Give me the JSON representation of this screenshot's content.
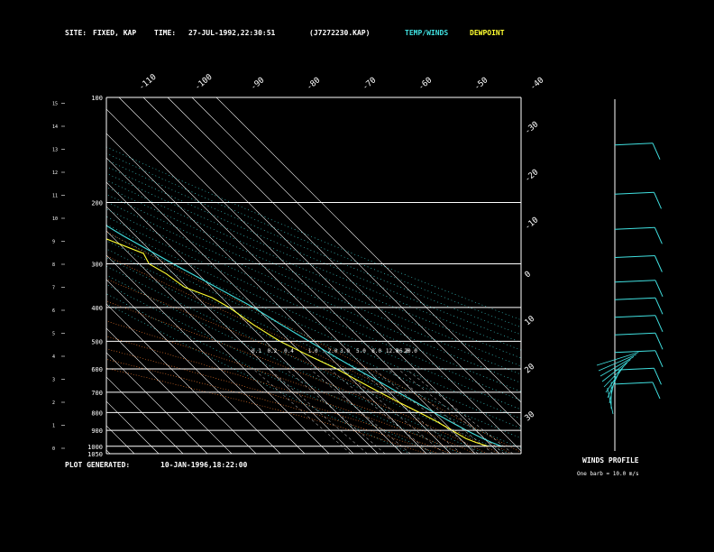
{
  "header": {
    "site_label": "SITE:",
    "site_value": "FIXED, KAP",
    "time_label": "TIME:",
    "time_value": "27-JUL-1992,22:30:51",
    "file_value": "(J7272230.KAP)",
    "legend_temp": "TEMP/WINDS",
    "legend_dew": "DEWPOINT"
  },
  "footer": {
    "generated_label": "PLOT GENERATED:",
    "generated_value": "10-JAN-1996,18:22:00",
    "winds_title": "WINDS PROFILE",
    "winds_note": "One barb = 10.0 m/s"
  },
  "colors": {
    "background": "#000000",
    "grid": "#ffffff",
    "temperature": "#40e0e0",
    "dewpoint": "#ffff30",
    "mixing_ratio": "#ff8030",
    "text": "#ffffff"
  },
  "chart_data": {
    "type": "line",
    "subtype": "skew-t log-p sounding",
    "title": "",
    "pressure_levels": [
      100,
      200,
      300,
      400,
      500,
      600,
      700,
      800,
      900,
      1000
    ],
    "pressure_extra_labels": [
      "1050"
    ],
    "pressure_range": [
      100,
      1050
    ],
    "height_ticks_km": [
      0,
      1,
      2,
      3,
      4,
      5,
      6,
      7,
      8,
      9,
      10,
      11,
      12,
      13,
      14,
      15
    ],
    "isotherm_labels_top": [
      "-110",
      "-100",
      "-90",
      "-80",
      "-70",
      "-60",
      "-50",
      "-40"
    ],
    "isotherm_labels_right": [
      "-30",
      "-20",
      "-10",
      "0",
      "10",
      "20",
      "30"
    ],
    "mixing_ratio_labels": [
      "0.1",
      "0.2",
      "0.4",
      "1.0",
      "2.0",
      "3.0",
      "5.0",
      "8.0",
      "12.0",
      "16.0",
      "20.0"
    ],
    "temperature": [
      {
        "p": 1000,
        "t": 24.0
      },
      {
        "p": 975,
        "t": 21.5
      },
      {
        "p": 950,
        "t": 19.5
      },
      {
        "p": 900,
        "t": 16.0
      },
      {
        "p": 850,
        "t": 13.0
      },
      {
        "p": 800,
        "t": 10.0
      },
      {
        "p": 750,
        "t": 7.0
      },
      {
        "p": 700,
        "t": 3.5
      },
      {
        "p": 650,
        "t": 0.0
      },
      {
        "p": 600,
        "t": -4.0
      },
      {
        "p": 550,
        "t": -8.0
      },
      {
        "p": 500,
        "t": -12.0
      },
      {
        "p": 450,
        "t": -16.5
      },
      {
        "p": 400,
        "t": -21.0
      },
      {
        "p": 350,
        "t": -28.0
      },
      {
        "p": 300,
        "t": -36.0
      },
      {
        "p": 250,
        "t": -45.0
      },
      {
        "p": 200,
        "t": -54.0
      },
      {
        "p": 175,
        "t": -58.0
      },
      {
        "p": 150,
        "t": -60.0
      },
      {
        "p": 125,
        "t": -62.0
      },
      {
        "p": 110,
        "t": -61.0
      },
      {
        "p": 100,
        "t": -62.0
      }
    ],
    "dewpoint": [
      {
        "p": 1000,
        "t": 18.5
      },
      {
        "p": 975,
        "t": 15.0
      },
      {
        "p": 950,
        "t": 12.5
      },
      {
        "p": 900,
        "t": 10.0
      },
      {
        "p": 850,
        "t": 7.5
      },
      {
        "p": 800,
        "t": 4.0
      },
      {
        "p": 750,
        "t": 0.0
      },
      {
        "p": 700,
        "t": -4.0
      },
      {
        "p": 650,
        "t": -8.0
      },
      {
        "p": 600,
        "t": -12.0
      },
      {
        "p": 550,
        "t": -18.0
      },
      {
        "p": 500,
        "t": -24.0
      },
      {
        "p": 450,
        "t": -28.0
      },
      {
        "p": 400,
        "t": -31.0
      },
      {
        "p": 375,
        "t": -34.0
      },
      {
        "p": 350,
        "t": -41.0
      },
      {
        "p": 320,
        "t": -43.0
      },
      {
        "p": 300,
        "t": -46.0
      },
      {
        "p": 280,
        "t": -44.0
      },
      {
        "p": 250,
        "t": -55.0
      },
      {
        "p": 220,
        "t": -62.0
      },
      {
        "p": 200,
        "t": -68.0
      },
      {
        "p": 175,
        "t": -77.0
      },
      {
        "p": 150,
        "t": -83.0
      },
      {
        "p": 125,
        "t": -85.0
      },
      {
        "p": 110,
        "t": -82.0
      },
      {
        "p": 100,
        "t": -78.0
      }
    ],
    "wind_levels": [
      {
        "y": 0.13,
        "dir": 280,
        "speed": 40
      },
      {
        "y": 0.27,
        "dir": 275,
        "speed": 45
      },
      {
        "y": 0.37,
        "dir": 280,
        "speed": 48
      },
      {
        "y": 0.45,
        "dir": 270,
        "speed": 48
      },
      {
        "y": 0.52,
        "dir": 275,
        "speed": 50
      },
      {
        "y": 0.57,
        "dir": 270,
        "speed": 50
      },
      {
        "y": 0.62,
        "dir": 265,
        "speed": 50
      },
      {
        "y": 0.67,
        "dir": 265,
        "speed": 50
      },
      {
        "y": 0.72,
        "dir": 270,
        "speed": 50
      },
      {
        "y": 0.77,
        "dir": 270,
        "speed": 45
      },
      {
        "y": 0.81,
        "dir": 270,
        "speed": 40
      }
    ]
  }
}
